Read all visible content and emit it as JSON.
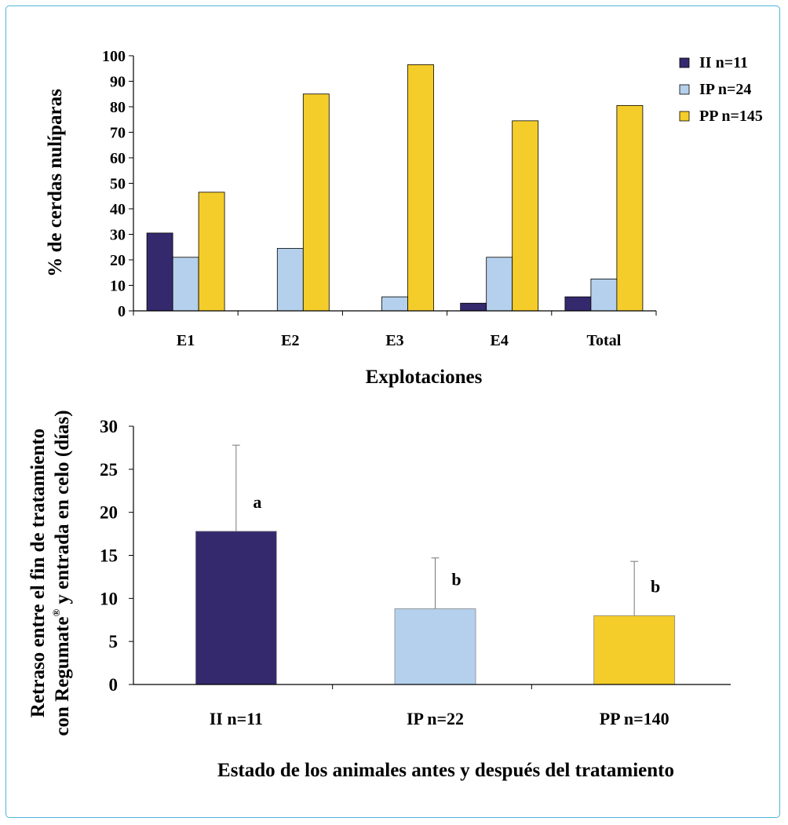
{
  "chart_data": [
    {
      "type": "bar",
      "title": "",
      "xlabel": "Explotaciones",
      "ylabel": "% de cerdas nulíparas",
      "ylim": [
        0,
        100
      ],
      "yticks": [
        0,
        10,
        20,
        30,
        40,
        50,
        60,
        70,
        80,
        90,
        100
      ],
      "grid": false,
      "legend_position": "right",
      "categories": [
        "E1",
        "E2",
        "E3",
        "E4",
        "Total"
      ],
      "series": [
        {
          "name": "II n=11",
          "color": "#35296e",
          "values": [
            30.5,
            0,
            0,
            3,
            5.5
          ]
        },
        {
          "name": "IP n=24",
          "color": "#b4d0ec",
          "values": [
            21,
            24.5,
            5.5,
            21,
            12.5
          ]
        },
        {
          "name": "PP n=145",
          "color": "#f5cd2a",
          "values": [
            46.5,
            85,
            96.5,
            74.5,
            80.5
          ]
        }
      ]
    },
    {
      "type": "bar",
      "title": "",
      "xlabel": "Estado de los animales antes y después del tratamiento",
      "ylabel_line1": "Retraso entre el fin de tratamiento",
      "ylabel_line2_pre": "con Regumate",
      "ylabel_line2_sup": "®",
      "ylabel_line2_post": " y entrada en celo (días)",
      "ylim": [
        0,
        30
      ],
      "yticks": [
        0,
        5,
        10,
        15,
        20,
        25,
        30
      ],
      "grid": false,
      "categories": [
        "II n=11",
        "IP n=22",
        "PP n=140"
      ],
      "colors": [
        "#35296e",
        "#b4d0ec",
        "#f5cd2a"
      ],
      "values": [
        17.8,
        8.8,
        8.0
      ],
      "error_upper": [
        27.8,
        14.7,
        14.3
      ],
      "annotations": [
        "a",
        "b",
        "b"
      ]
    }
  ]
}
